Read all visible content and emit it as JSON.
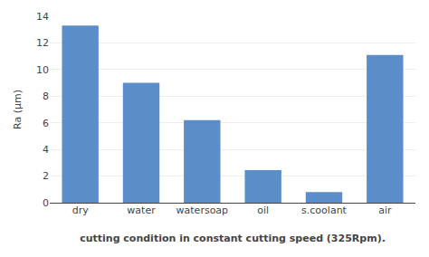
{
  "chart_data": {
    "type": "bar",
    "categories": [
      "dry",
      "water",
      "watersoap",
      "oil",
      "s.coolant",
      "air"
    ],
    "values": [
      13.3,
      9.0,
      6.2,
      2.45,
      0.8,
      11.1
    ],
    "color": "#5B8DC8",
    "ylabel": "Ra (µm)",
    "xlabel": "cutting condition in constant cutting speed (325Rpm).",
    "ylim": [
      0,
      14
    ],
    "yticks": [
      0,
      2,
      4,
      6,
      8,
      10,
      12,
      14
    ],
    "grid": true
  }
}
